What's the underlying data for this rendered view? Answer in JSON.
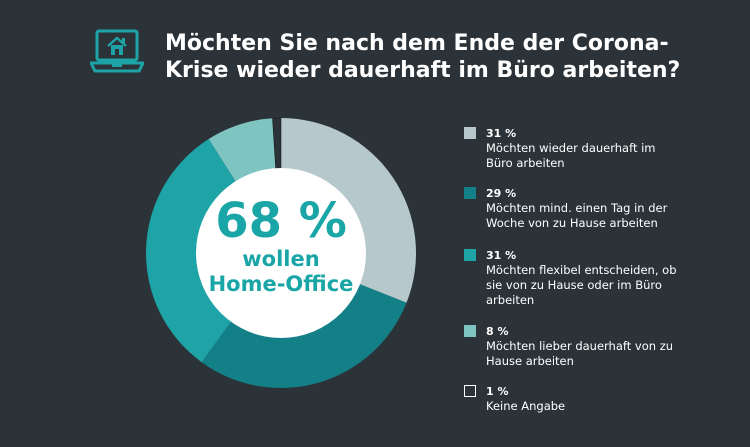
{
  "title": {
    "line1": "Möchten Sie nach dem Ende der Corona-",
    "line2": "Krise wieder dauerhaft im Büro arbeiten?"
  },
  "center": {
    "value": "68 %",
    "line1": "wollen",
    "line2": "Home-Office"
  },
  "icon": "laptop-home-icon",
  "colors": {
    "background": "#2b3338",
    "accent": "#1aa5a7",
    "center_fill": "#ffffff"
  },
  "chart_data": {
    "type": "pie",
    "donut": true,
    "unit": "%",
    "legend_position": "right",
    "slices": [
      {
        "label": "31 %",
        "value": 31,
        "name": "Möchten wieder dauerhaft im Büro arbeiten",
        "lines": [
          "Möchten wieder dauerhaft im",
          "Büro arbeiten"
        ],
        "color": "#b6c8cb",
        "swatch_border": false
      },
      {
        "label": "29 %",
        "value": 29,
        "name": "Möchten mind. einen Tag in der Woche von zu Hause arbeiten",
        "lines": [
          "Möchten mind. einen Tag in der",
          "Woche von zu Hause arbeiten"
        ],
        "color": "#137f87",
        "swatch_border": false
      },
      {
        "label": "31 %",
        "value": 31,
        "name": "Möchten flexibel entscheiden, ob sie von zu Hause oder im Büro arbeiten",
        "lines": [
          "Möchten flexibel entscheiden, ob",
          "sie von zu Hause oder im Büro",
          "arbeiten"
        ],
        "color": "#1ea3a6",
        "swatch_border": false
      },
      {
        "label": "8 %",
        "value": 8,
        "name": "Möchten lieber dauerhaft von zu Hause arbeiten",
        "lines": [
          "Möchten lieber dauerhaft von zu",
          "Hause arbeiten"
        ],
        "color": "#7ec4c1",
        "swatch_border": false
      },
      {
        "label": "1 %",
        "value": 1,
        "name": "Keine Angabe",
        "lines": [
          "Keine Angabe"
        ],
        "color": "#2b3338",
        "swatch_border": true
      }
    ]
  }
}
